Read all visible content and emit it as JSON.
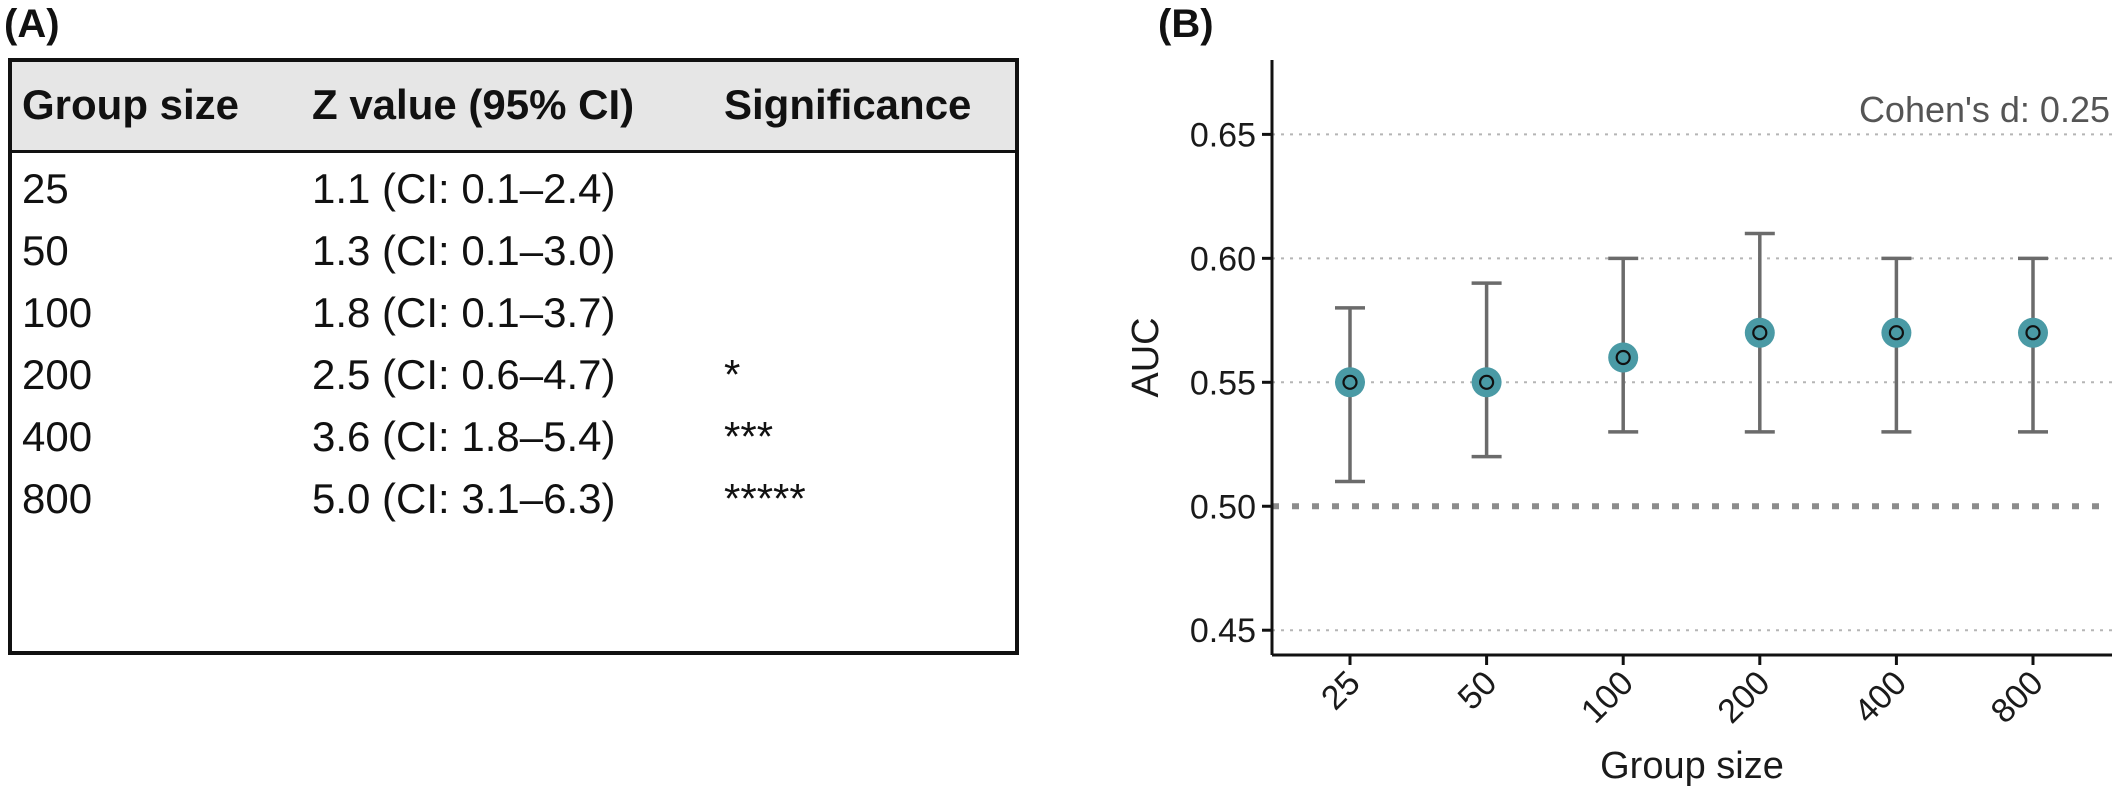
{
  "panel_a": {
    "label": "(A)",
    "columns": [
      "Group size",
      "Z value (95% CI)",
      "Significance"
    ],
    "rows": [
      {
        "group": "25",
        "z": "1.1 (CI: 0.1–2.4)",
        "sig": ""
      },
      {
        "group": "50",
        "z": "1.3 (CI: 0.1–3.0)",
        "sig": ""
      },
      {
        "group": "100",
        "z": "1.8 (CI: 0.1–3.7)",
        "sig": ""
      },
      {
        "group": "200",
        "z": "2.5 (CI: 0.6–4.7)",
        "sig": "*"
      },
      {
        "group": "400",
        "z": "3.6 (CI: 1.8–5.4)",
        "sig": "***"
      },
      {
        "group": "800",
        "z": "5.0 (CI: 3.1–6.3)",
        "sig": "*****"
      }
    ]
  },
  "panel_b": {
    "label": "(B)"
  },
  "chart_data": {
    "type": "scatter",
    "title": "",
    "annotation": "Cohen's d: 0.25",
    "xlabel": "Group size",
    "ylabel": "AUC",
    "categories": [
      "25",
      "50",
      "100",
      "200",
      "400",
      "800"
    ],
    "values": [
      0.55,
      0.55,
      0.56,
      0.57,
      0.57,
      0.57
    ],
    "ci_lower": [
      0.51,
      0.52,
      0.53,
      0.53,
      0.53,
      0.53
    ],
    "ci_upper": [
      0.58,
      0.59,
      0.6,
      0.61,
      0.6,
      0.6
    ],
    "ylim": [
      0.44,
      0.68
    ],
    "yticks": [
      "0.45",
      "0.50",
      "0.55",
      "0.60",
      "0.65"
    ],
    "reference_line": 0.5,
    "grid": "horizontal dotted",
    "colors": {
      "point": "#4a9aa5",
      "errorbar": "#6b6b6b",
      "grid": "#b5b5b5",
      "reference": "#8c8c8c"
    }
  }
}
